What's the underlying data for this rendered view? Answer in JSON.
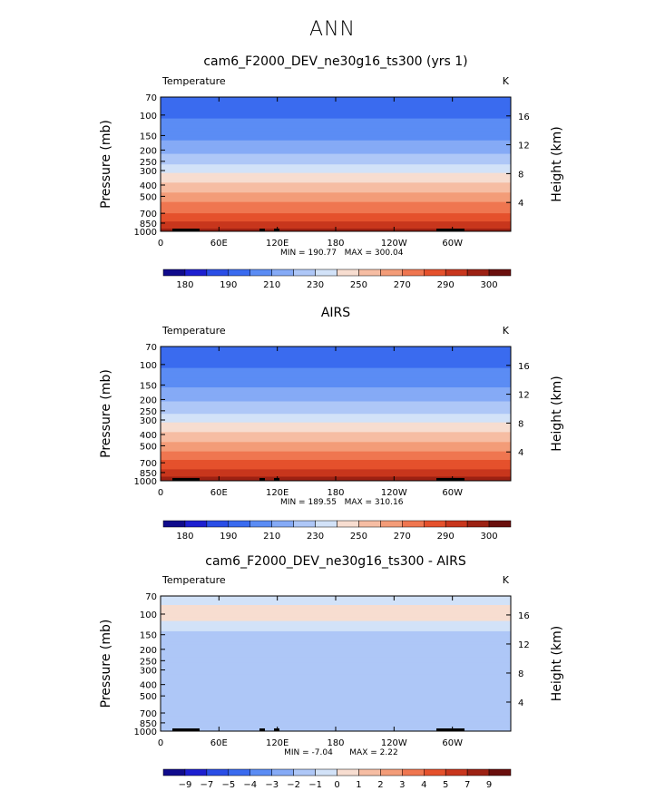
{
  "page_title": "ANN",
  "common": {
    "field_label": "Temperature",
    "units": "K",
    "left_axis_label": "Pressure (mb)",
    "right_axis_label": "Height (km)",
    "pressure_ticks": [
      70,
      100,
      150,
      200,
      250,
      300,
      400,
      500,
      700,
      850,
      1000
    ],
    "height_ticks": [
      4,
      8,
      12,
      16
    ],
    "lon_ticks": [
      "0",
      "60E",
      "120E",
      "180",
      "120W",
      "60W"
    ]
  },
  "chart_data": [
    {
      "type": "heatmap",
      "title": "cam6_F2000_DEV_ne30g16_ts300 (yrs 1)",
      "xlabel": "",
      "ylabel": "Pressure (mb)",
      "y2label": "Height (km)",
      "min_label": "MIN = 190.77",
      "max_label": "MAX = 300.04",
      "colorbar_labels": [
        "180",
        "190",
        "210",
        "230",
        "250",
        "270",
        "290",
        "300"
      ],
      "colorbar_colors": [
        "#100b8c",
        "#1d1fd0",
        "#2a4ee6",
        "#3a6bef",
        "#5b8cf4",
        "#85aaf6",
        "#aec7f7",
        "#d2e2f8",
        "#f7ddd0",
        "#f6bda3",
        "#f39c78",
        "#ef7650",
        "#e5512c",
        "#c8361d",
        "#9c2113",
        "#6a0f0d"
      ],
      "ylim": [
        1000,
        70
      ],
      "profile": [
        {
          "p": 70,
          "value": 205
        },
        {
          "p": 100,
          "value": 205
        },
        {
          "p": 150,
          "value": 212
        },
        {
          "p": 200,
          "value": 220
        },
        {
          "p": 250,
          "value": 228
        },
        {
          "p": 300,
          "value": 237
        },
        {
          "p": 400,
          "value": 250
        },
        {
          "p": 500,
          "value": 260
        },
        {
          "p": 700,
          "value": 275
        },
        {
          "p": 850,
          "value": 285
        },
        {
          "p": 1000,
          "value": 295
        }
      ]
    },
    {
      "type": "heatmap",
      "title": "AIRS",
      "xlabel": "",
      "ylabel": "Pressure (mb)",
      "y2label": "Height (km)",
      "min_label": "MIN = 189.55",
      "max_label": "MAX = 310.16",
      "colorbar_labels": [
        "180",
        "190",
        "210",
        "230",
        "250",
        "270",
        "290",
        "300"
      ],
      "colorbar_colors": [
        "#100b8c",
        "#1d1fd0",
        "#2a4ee6",
        "#3a6bef",
        "#5b8cf4",
        "#85aaf6",
        "#aec7f7",
        "#d2e2f8",
        "#f7ddd0",
        "#f6bda3",
        "#f39c78",
        "#ef7650",
        "#e5512c",
        "#c8361d",
        "#9c2113",
        "#6a0f0d"
      ],
      "ylim": [
        1000,
        70
      ],
      "profile": [
        {
          "p": 70,
          "value": 205
        },
        {
          "p": 100,
          "value": 205
        },
        {
          "p": 150,
          "value": 213
        },
        {
          "p": 200,
          "value": 221
        },
        {
          "p": 250,
          "value": 229
        },
        {
          "p": 300,
          "value": 238
        },
        {
          "p": 400,
          "value": 251
        },
        {
          "p": 500,
          "value": 261
        },
        {
          "p": 700,
          "value": 276
        },
        {
          "p": 850,
          "value": 286
        },
        {
          "p": 1000,
          "value": 297
        }
      ]
    },
    {
      "type": "heatmap",
      "title": "cam6_F2000_DEV_ne30g16_ts300 - AIRS",
      "xlabel": "",
      "ylabel": "Pressure (mb)",
      "y2label": "Height (km)",
      "min_label": "MIN =   -7.04",
      "max_label": "MAX =     2.22",
      "colorbar_labels": [
        "−9",
        "−7",
        "−5",
        "−4",
        "−3",
        "−2",
        "−1",
        "0",
        "1",
        "2",
        "3",
        "4",
        "5",
        "7",
        "9"
      ],
      "colorbar_colors": [
        "#100b8c",
        "#1d1fd0",
        "#2a4ee6",
        "#3a6bef",
        "#5b8cf4",
        "#85aaf6",
        "#aec7f7",
        "#d2e2f8",
        "#f7ddd0",
        "#f6bda3",
        "#f39c78",
        "#ef7650",
        "#e5512c",
        "#c8361d",
        "#9c2113",
        "#6a0f0d"
      ],
      "ylim": [
        1000,
        70
      ],
      "profile": [
        {
          "p": 70,
          "value": -0.5
        },
        {
          "p": 100,
          "value": 0.5
        },
        {
          "p": 150,
          "value": -1.5
        },
        {
          "p": 200,
          "value": -1.5
        },
        {
          "p": 250,
          "value": -1.5
        },
        {
          "p": 300,
          "value": -1.5
        },
        {
          "p": 400,
          "value": -1.5
        },
        {
          "p": 500,
          "value": -1.5
        },
        {
          "p": 700,
          "value": -1.5
        },
        {
          "p": 850,
          "value": -1.5
        },
        {
          "p": 1000,
          "value": -1.5
        }
      ]
    }
  ]
}
